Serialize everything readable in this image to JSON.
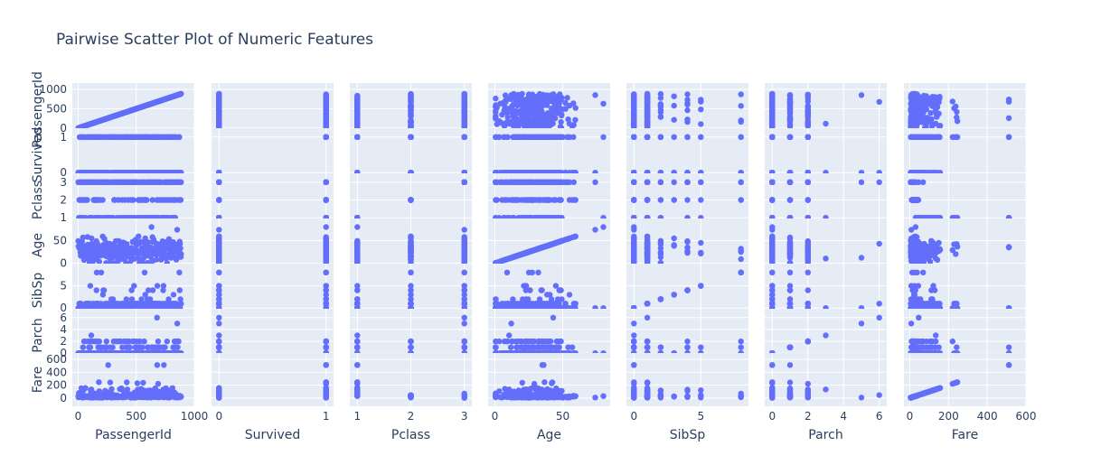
{
  "title": "Pairwise Scatter Plot of Numeric Features",
  "colors": {
    "marker": "#636efa",
    "panel_bg": "#e5ecf6",
    "grid": "#ffffff",
    "text": "#2a3f5f"
  },
  "chart_data": {
    "type": "scatter",
    "title": "Pairwise Scatter Plot of Numeric Features",
    "variables": [
      "PassengerId",
      "Survived",
      "Pclass",
      "Age",
      "SibSp",
      "Parch",
      "Fare"
    ],
    "ranges": {
      "PassengerId": [
        -50,
        1000
      ],
      "Survived": [
        -0.07,
        1.07
      ],
      "Pclass": [
        0.86,
        3.14
      ],
      "Age": [
        -5,
        85
      ],
      "SibSp": [
        -0.56,
        8.56
      ],
      "Parch": [
        -0.42,
        6.42
      ],
      "Fare": [
        -30,
        600
      ]
    },
    "ticks": {
      "PassengerId": [
        0,
        500,
        1000
      ],
      "Survived": [
        0,
        1
      ],
      "Pclass": [
        1,
        2,
        3
      ],
      "Age": [
        0,
        50
      ],
      "SibSp": [
        0,
        5
      ],
      "Parch": [
        0,
        2,
        4,
        6
      ],
      "Fare": [
        0,
        200,
        400,
        600
      ]
    },
    "diagonal_scatter": true,
    "grid": true,
    "legend": "none",
    "marker_color": "#636efa"
  }
}
